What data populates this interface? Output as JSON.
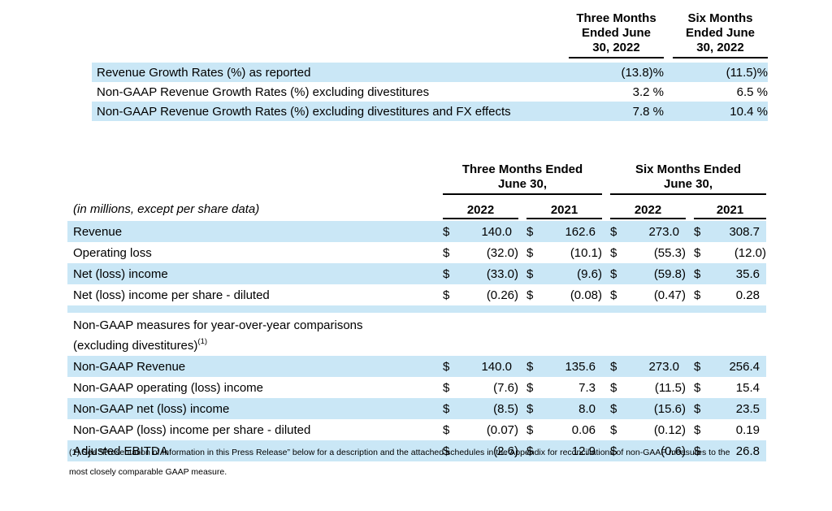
{
  "growth_table": {
    "col_headers": [
      [
        "Three Months",
        "Ended June",
        "30, 2022"
      ],
      [
        "Six Months",
        "Ended June",
        "30, 2022"
      ]
    ],
    "rows": [
      {
        "label": "Revenue Growth Rates (%) as reported",
        "values": [
          "(13.8)%",
          "(11.5)%"
        ],
        "highlight": true
      },
      {
        "label": "Non-GAAP Revenue Growth Rates (%) excluding divestitures",
        "values": [
          "3.2 %",
          "6.5 %"
        ],
        "highlight": false
      },
      {
        "label": "Non-GAAP Revenue Growth Rates (%) excluding divestitures and FX effects",
        "values": [
          "7.8 %",
          "10.4 %"
        ],
        "highlight": true
      }
    ]
  },
  "financial_table": {
    "units_note": "(in millions, except per share data)",
    "currency_symbol": "$",
    "group_headers": [
      {
        "line1": "Three Months  Ended",
        "line2": "June 30,"
      },
      {
        "line1": "Six Months Ended",
        "line2": "June 30,"
      }
    ],
    "year_headers": [
      "2022",
      "2021",
      "2022",
      "2021"
    ],
    "gaap_rows": [
      {
        "label": "Revenue",
        "values": [
          "140.0",
          "162.6",
          "273.0",
          "308.7"
        ],
        "highlight": true
      },
      {
        "label": "Operating loss",
        "values": [
          "(32.0)",
          "(10.1)",
          "(55.3)",
          "(12.0)"
        ],
        "highlight": false
      },
      {
        "label": "Net (loss) income",
        "values": [
          "(33.0)",
          "(9.6)",
          "(59.8)",
          "35.6"
        ],
        "highlight": true
      },
      {
        "label": "Net (loss) income per share - diluted",
        "values": [
          "(0.26)",
          "(0.08)",
          "(0.47)",
          "0.28"
        ],
        "highlight": false
      }
    ],
    "section_header": {
      "line1": "Non-GAAP measures for year-over-year comparisons",
      "line2": "(excluding divestitures)",
      "footnote_ref": "(1)"
    },
    "non_gaap_rows": [
      {
        "label": "Non-GAAP Revenue",
        "values": [
          "140.0",
          "135.6",
          "273.0",
          "256.4"
        ],
        "highlight": true
      },
      {
        "label": "Non-GAAP operating (loss) income",
        "values": [
          "(7.6)",
          "7.3",
          "(11.5)",
          "15.4"
        ],
        "highlight": false
      },
      {
        "label": "Non-GAAP net (loss) income",
        "values": [
          "(8.5)",
          "8.0",
          "(15.6)",
          "23.5"
        ],
        "highlight": true
      },
      {
        "label": "Non-GAAP (loss) income per share - diluted",
        "values": [
          "(0.07)",
          "0.06",
          "(0.12)",
          "0.19"
        ],
        "highlight": false
      },
      {
        "label": "Adjusted EBITDA",
        "values": [
          "(2.6)",
          "12.9",
          "(0.6)",
          "26.8"
        ],
        "highlight": true
      }
    ]
  },
  "footnote": {
    "line1": "(1) See “Presentation of Information in this Press Release” below for a description and the attached schedules in the Appendix for reconciliations of non-GAAP measures to the",
    "line2": "most closely comparable GAAP measure."
  },
  "colors": {
    "highlight": "#cae7f6",
    "text": "#000000",
    "rule": "#000000"
  }
}
